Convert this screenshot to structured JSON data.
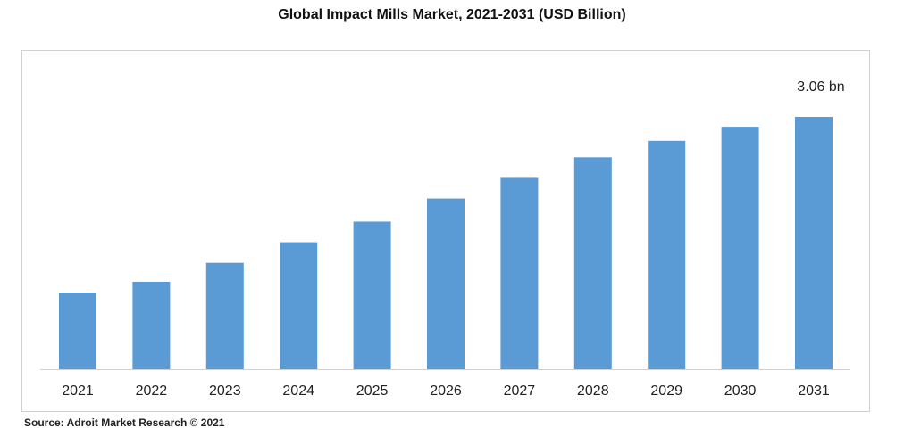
{
  "chart_data": {
    "type": "bar",
    "title": "Global Impact Mills Market, 2021-2031 (USD Billion)",
    "categories": [
      "2021",
      "2022",
      "2023",
      "2024",
      "2025",
      "2026",
      "2027",
      "2028",
      "2029",
      "2030",
      "2031"
    ],
    "values": [
      0.93,
      1.06,
      1.29,
      1.54,
      1.79,
      2.07,
      2.32,
      2.57,
      2.77,
      2.94,
      3.06
    ],
    "data_labels": {
      "2031": "3.06 bn"
    },
    "xlabel": "",
    "ylabel": "",
    "ylim": [
      0,
      3.06
    ],
    "grid": false,
    "bar_color": "#5b9bd5"
  },
  "source": "Source: Adroit Market Research © 2021"
}
